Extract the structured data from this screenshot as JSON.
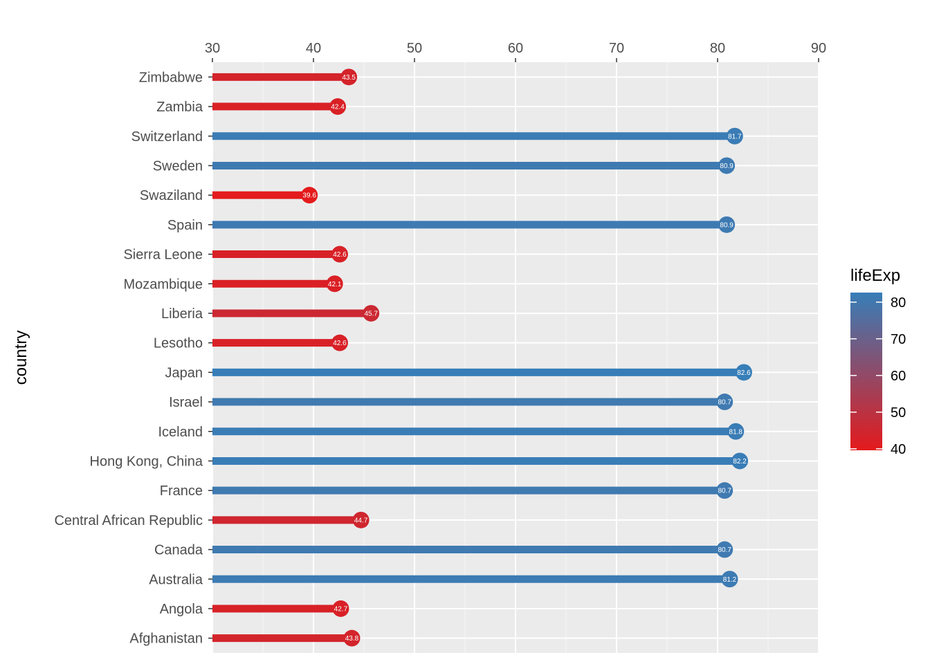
{
  "chart_data": {
    "type": "lollipop",
    "orientation": "horizontal",
    "ylabel": "country",
    "xlim": [
      30,
      90
    ],
    "x_ticks": [
      "30",
      "40",
      "50",
      "60",
      "70",
      "80",
      "90"
    ],
    "x_axis_position": "top",
    "grid": true,
    "legend": {
      "title": "lifeExp",
      "placement": "right",
      "type": "continuous-colorbar",
      "range": [
        39.6,
        82.6
      ],
      "ticks": [
        "40",
        "50",
        "60",
        "70",
        "80"
      ],
      "low_color": "#E41A1C",
      "high_color": "#377EB8"
    },
    "categories": [
      "Zimbabwe",
      "Zambia",
      "Switzerland",
      "Sweden",
      "Swaziland",
      "Spain",
      "Sierra Leone",
      "Mozambique",
      "Liberia",
      "Lesotho",
      "Japan",
      "Israel",
      "Iceland",
      "Hong Kong, China",
      "France",
      "Central African Republic",
      "Canada",
      "Australia",
      "Angola",
      "Afghanistan"
    ],
    "values": [
      43.5,
      42.4,
      81.7,
      80.9,
      39.6,
      80.9,
      42.6,
      42.1,
      45.7,
      42.6,
      82.6,
      80.7,
      81.8,
      82.2,
      80.7,
      44.7,
      80.7,
      81.2,
      42.7,
      43.8
    ],
    "value_labels": [
      "43.5",
      "42.4",
      "81.7",
      "80.9",
      "39.6",
      "80.9",
      "42.6",
      "42.1",
      "45.7",
      "42.6",
      "82.6",
      "80.7",
      "81.8",
      "82.2",
      "80.7",
      "44.7",
      "80.7",
      "81.2",
      "42.7",
      "43.8"
    ],
    "segment_start": 30
  },
  "colors": {
    "panel_background": "#EBEBEB",
    "grid_major": "#FFFFFF",
    "grid_minor": "#F5F5F5"
  }
}
